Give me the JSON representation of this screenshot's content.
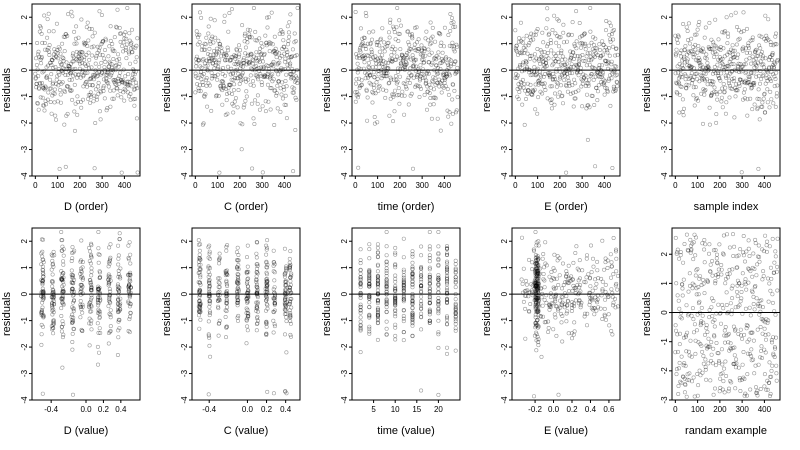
{
  "chart_data": [
    {
      "type": "scatter",
      "xlabel": "D (order)",
      "ylabel": "residuals",
      "xticks": [
        0,
        100,
        200,
        300,
        400
      ],
      "yticks": [
        -4,
        -3,
        -2,
        -1,
        0,
        1,
        2
      ],
      "xlim": [
        -15,
        470
      ],
      "ylim": [
        -4,
        2.5
      ],
      "hline": 0,
      "x_kind": "order",
      "y_kind": "resid",
      "seed": 11
    },
    {
      "type": "scatter",
      "xlabel": "C (order)",
      "ylabel": "residuals",
      "xticks": [
        0,
        100,
        200,
        300,
        400
      ],
      "yticks": [
        -4,
        -3,
        -2,
        -1,
        0,
        1,
        2
      ],
      "xlim": [
        -15,
        470
      ],
      "ylim": [
        -4,
        2.5
      ],
      "hline": 0,
      "x_kind": "order",
      "y_kind": "resid",
      "seed": 23
    },
    {
      "type": "scatter",
      "xlabel": "time (order)",
      "ylabel": "residuals",
      "xticks": [
        0,
        100,
        200,
        300,
        400
      ],
      "yticks": [
        -4,
        -3,
        -2,
        -1,
        0,
        1,
        2
      ],
      "xlim": [
        -15,
        470
      ],
      "ylim": [
        -4,
        2.5
      ],
      "hline": 0,
      "x_kind": "order",
      "y_kind": "resid",
      "seed": 37
    },
    {
      "type": "scatter",
      "xlabel": "E (order)",
      "ylabel": "residuals",
      "xticks": [
        0,
        100,
        200,
        300,
        400
      ],
      "yticks": [
        -4,
        -3,
        -2,
        -1,
        0,
        1,
        2
      ],
      "xlim": [
        -15,
        470
      ],
      "ylim": [
        -4,
        2.5
      ],
      "hline": 0,
      "x_kind": "order",
      "y_kind": "resid",
      "seed": 41
    },
    {
      "type": "scatter",
      "xlabel": "sample index",
      "ylabel": "residuals",
      "xticks": [
        0,
        100,
        200,
        300,
        400
      ],
      "yticks": [
        -4,
        -3,
        -2,
        -1,
        0,
        1,
        2
      ],
      "xlim": [
        -15,
        470
      ],
      "ylim": [
        -4,
        2.5
      ],
      "hline": 0,
      "x_kind": "order",
      "y_kind": "resid",
      "seed": 53
    },
    {
      "type": "scatter",
      "xlabel": "D (value)",
      "ylabel": "residuals",
      "xticks": [
        -0.4,
        0,
        0.2,
        0.4
      ],
      "xticklabels": [
        "-0.4",
        "0.0",
        "0.2",
        "0.4"
      ],
      "yticks": [
        -4,
        -3,
        -2,
        -1,
        0,
        1,
        2
      ],
      "xlim": [
        -0.62,
        0.62
      ],
      "ylim": [
        -4,
        2.5
      ],
      "hline": 0,
      "x_kind": "dval",
      "y_kind": "resid",
      "seed": 67
    },
    {
      "type": "scatter",
      "xlabel": "C (value)",
      "ylabel": "residuals",
      "xticks": [
        -0.4,
        0,
        0.2,
        0.4
      ],
      "xticklabels": [
        "-0.4",
        "0.0",
        "0.2",
        "0.4"
      ],
      "yticks": [
        -4,
        -3,
        -2,
        -1,
        0,
        1,
        2
      ],
      "xlim": [
        -0.58,
        0.55
      ],
      "ylim": [
        -4,
        2.5
      ],
      "hline": 0,
      "x_kind": "cval",
      "y_kind": "resid",
      "seed": 71
    },
    {
      "type": "scatter",
      "xlabel": "time (value)",
      "ylabel": "residuals",
      "xticks": [
        5,
        10,
        15,
        20
      ],
      "yticks": [
        -4,
        -3,
        -2,
        -1,
        0,
        1,
        2
      ],
      "xlim": [
        0,
        25
      ],
      "ylim": [
        -4,
        2.5
      ],
      "hline": 0,
      "x_kind": "tval",
      "y_kind": "resid",
      "seed": 83
    },
    {
      "type": "scatter",
      "xlabel": "E (value)",
      "ylabel": "residuals",
      "xticks": [
        -0.2,
        0,
        0.2,
        0.4,
        0.6
      ],
      "xticklabels": [
        "-0.2",
        "0.0",
        "0.2",
        "0.4",
        "0.6"
      ],
      "yticks": [
        -4,
        -3,
        -2,
        -1,
        0,
        1,
        2
      ],
      "xlim": [
        -0.45,
        0.72
      ],
      "ylim": [
        -4,
        2.5
      ],
      "hline": 0,
      "x_kind": "eval",
      "y_kind": "resid",
      "seed": 97
    },
    {
      "type": "scatter",
      "xlabel": "randam example",
      "ylabel": "residuals",
      "xticks": [
        0,
        100,
        200,
        300,
        400
      ],
      "yticks": [
        -3,
        -2,
        -1,
        0,
        1,
        2
      ],
      "xlim": [
        -15,
        470
      ],
      "ylim": [
        -3,
        2.9
      ],
      "hline": 0,
      "x_kind": "order",
      "y_kind": "uniform",
      "seed": 101
    }
  ]
}
